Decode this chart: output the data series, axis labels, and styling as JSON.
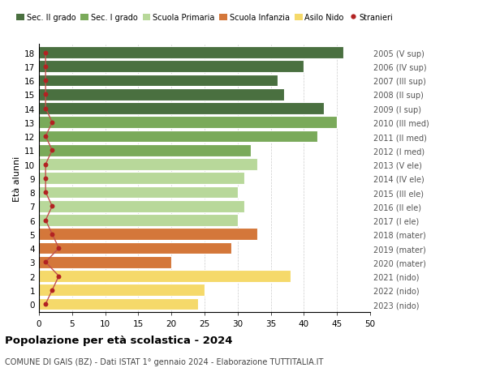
{
  "ages": [
    18,
    17,
    16,
    15,
    14,
    13,
    12,
    11,
    10,
    9,
    8,
    7,
    6,
    5,
    4,
    3,
    2,
    1,
    0
  ],
  "bar_values": [
    46,
    40,
    36,
    37,
    43,
    45,
    42,
    32,
    33,
    31,
    30,
    31,
    30,
    33,
    29,
    20,
    38,
    25,
    24
  ],
  "stranieri": [
    1,
    1,
    1,
    1,
    1,
    2,
    1,
    2,
    1,
    1,
    1,
    2,
    1,
    2,
    3,
    1,
    3,
    2,
    1
  ],
  "right_labels": [
    "2005 (V sup)",
    "2006 (IV sup)",
    "2007 (III sup)",
    "2008 (II sup)",
    "2009 (I sup)",
    "2010 (III med)",
    "2011 (II med)",
    "2012 (I med)",
    "2013 (V ele)",
    "2014 (IV ele)",
    "2015 (III ele)",
    "2016 (II ele)",
    "2017 (I ele)",
    "2018 (mater)",
    "2019 (mater)",
    "2020 (mater)",
    "2021 (nido)",
    "2022 (nido)",
    "2023 (nido)"
  ],
  "bar_colors": [
    "#4a7040",
    "#4a7040",
    "#4a7040",
    "#4a7040",
    "#4a7040",
    "#7aaa5a",
    "#7aaa5a",
    "#7aaa5a",
    "#b8d89a",
    "#b8d89a",
    "#b8d89a",
    "#b8d89a",
    "#b8d89a",
    "#d4773a",
    "#d4773a",
    "#d4773a",
    "#f5d96a",
    "#f5d96a",
    "#f5d96a"
  ],
  "legend_labels": [
    "Sec. II grado",
    "Sec. I grado",
    "Scuola Primaria",
    "Scuola Infanzia",
    "Asilo Nido",
    "Stranieri"
  ],
  "legend_colors": [
    "#4a7040",
    "#7aaa5a",
    "#b8d89a",
    "#d4773a",
    "#f5d96a",
    "#b22222"
  ],
  "title": "Popolazione per età scolastica - 2024",
  "subtitle": "COMUNE DI GAIS (BZ) - Dati ISTAT 1° gennaio 2024 - Elaborazione TUTTITALIA.IT",
  "ylabel_left": "Età alunni",
  "xlim": [
    0,
    50
  ],
  "stranieri_color": "#b22222",
  "stranieri_line_color": "#c0504d",
  "bar_edge_color": "white",
  "background_color": "#ffffff",
  "grid_color": "#cccccc"
}
